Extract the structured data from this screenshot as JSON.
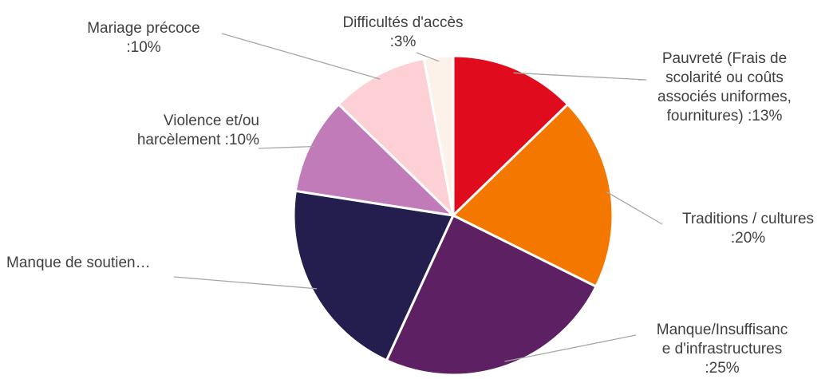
{
  "chart_data": {
    "type": "pie",
    "title": "",
    "series": [
      {
        "name": "",
        "values": [
          13,
          20,
          25,
          21,
          10,
          10,
          3
        ]
      }
    ],
    "slices": [
      {
        "label_lines": [
          "Pauvreté (Frais de",
          "scolarité ou coûts",
          "associés uniformes,",
          "fournitures)  :13%"
        ],
        "value": 13,
        "color": "#e00b1c"
      },
      {
        "label_lines": [
          "Traditions / cultures",
          ":20%"
        ],
        "value": 20,
        "color": "#f47800"
      },
      {
        "label_lines": [
          "Manque/Insuffisanc",
          "e d'infrastructures",
          ":25%"
        ],
        "value": 25,
        "color": "#5c2063"
      },
      {
        "label_lines": [
          "Manque de soutien…"
        ],
        "value": 21,
        "color": "#241e4e"
      },
      {
        "label_lines": [
          "Violence et/ou",
          "harcèlement  :10%"
        ],
        "value": 10,
        "color": "#c17bb8"
      },
      {
        "label_lines": [
          "Mariage précoce",
          ":10%"
        ],
        "value": 10,
        "color": "#fdd0d5"
      },
      {
        "label_lines": [
          "Difficultés d'accès",
          ":3%"
        ],
        "value": 3,
        "color": "#fdf2ea"
      }
    ]
  }
}
